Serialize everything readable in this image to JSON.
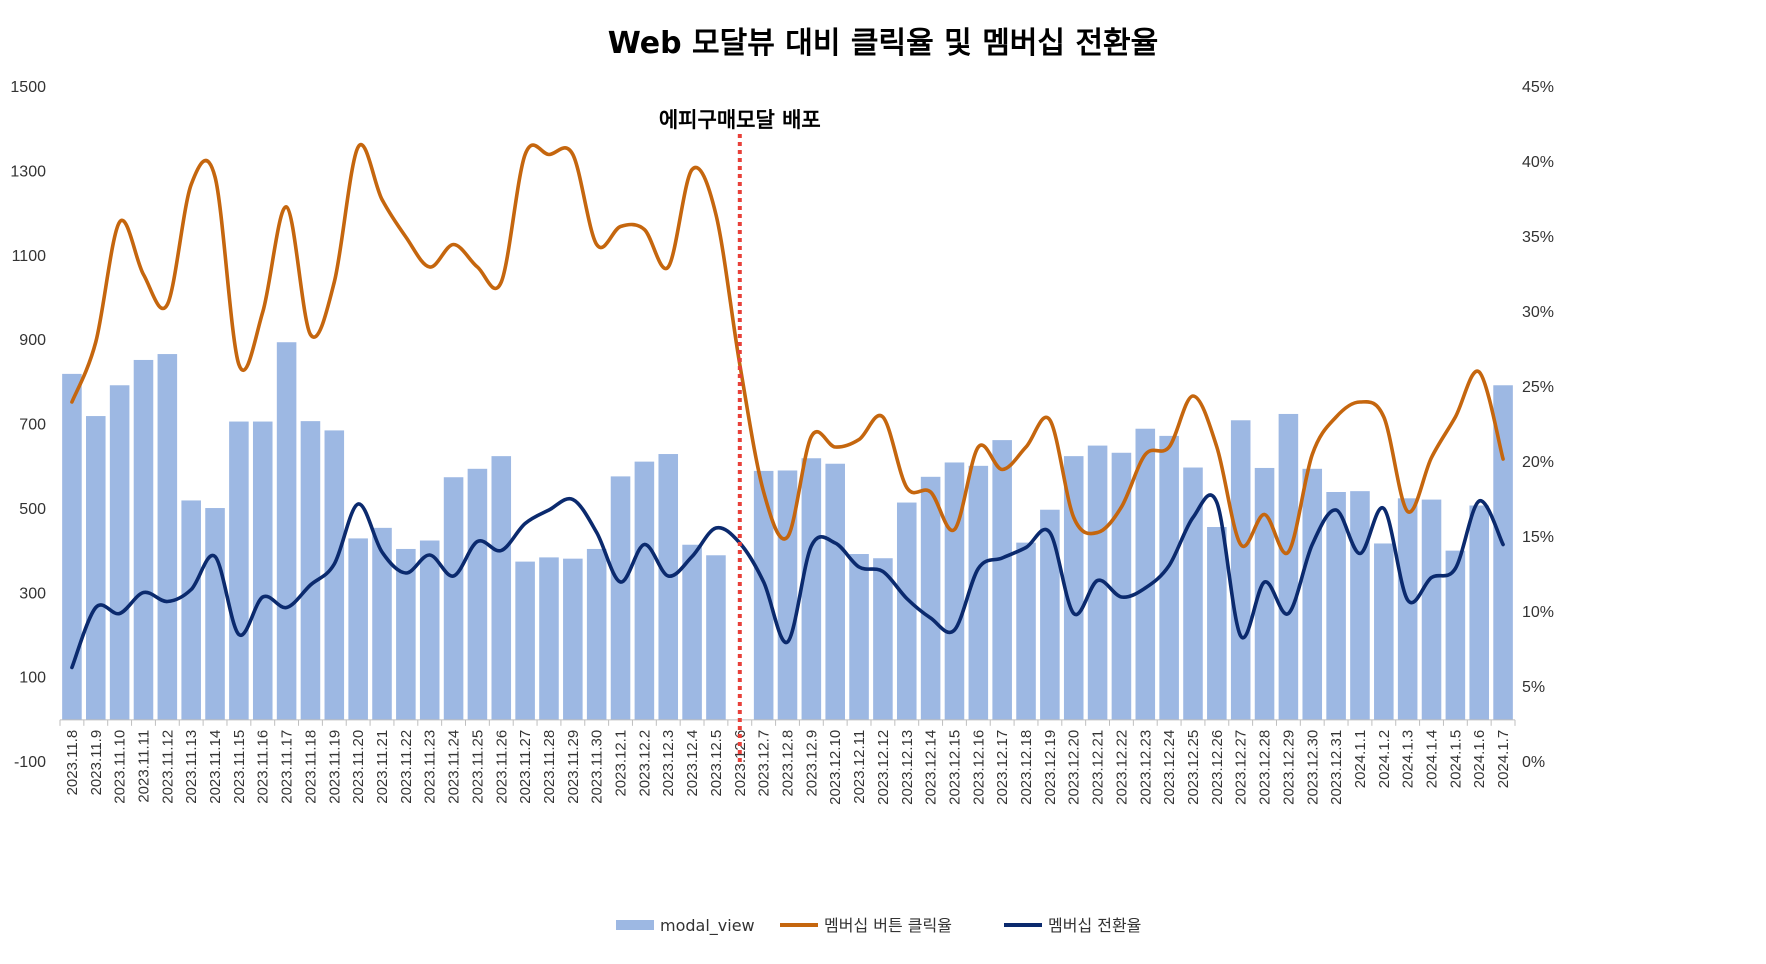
{
  "chart_data": {
    "type": "bar",
    "title": "Web 모달뷰 대비 클릭율 및 멤버십 전환율",
    "annotation": {
      "label": "에피구매모달 배포",
      "at": "2023.12.6"
    },
    "categories": [
      "2023.11.8",
      "2023.11.9",
      "2023.11.10",
      "2023.11.11",
      "2023.11.12",
      "2023.11.13",
      "2023.11.14",
      "2023.11.15",
      "2023.11.16",
      "2023.11.17",
      "2023.11.18",
      "2023.11.19",
      "2023.11.20",
      "2023.11.21",
      "2023.11.22",
      "2023.11.23",
      "2023.11.24",
      "2023.11.25",
      "2023.11.26",
      "2023.11.27",
      "2023.11.28",
      "2023.11.29",
      "2023.11.30",
      "2023.12.1",
      "2023.12.2",
      "2023.12.3",
      "2023.12.4",
      "2023.12.5",
      "2023.12.6",
      "2023.12.7",
      "2023.12.8",
      "2023.12.9",
      "2023.12.10",
      "2023.12.11",
      "2023.12.12",
      "2023.12.13",
      "2023.12.14",
      "2023.12.15",
      "2023.12.16",
      "2023.12.17",
      "2023.12.18",
      "2023.12.19",
      "2023.12.20",
      "2023.12.21",
      "2023.12.22",
      "2023.12.23",
      "2023.12.24",
      "2023.12.25",
      "2023.12.26",
      "2023.12.27",
      "2023.12.28",
      "2023.12.29",
      "2023.12.30",
      "2023.12.31",
      "2024.1.1",
      "2024.1.2",
      "2024.1.3",
      "2024.1.4",
      "2024.1.5",
      "2024.1.6",
      "2024.1.7"
    ],
    "y_left": {
      "min": -100,
      "max": 1500,
      "ticks": [
        -100,
        100,
        300,
        500,
        700,
        900,
        1100,
        1300,
        1500
      ]
    },
    "y_right": {
      "min": 0,
      "max": 45,
      "ticks": [
        0,
        5,
        10,
        15,
        20,
        25,
        30,
        35,
        40,
        45
      ],
      "tick_labels": [
        "0%",
        "5%",
        "10%",
        "15%",
        "20%",
        "25%",
        "30%",
        "35%",
        "40%",
        "45%"
      ]
    },
    "series": [
      {
        "name": "modal_view",
        "kind": "bar",
        "axis": "left",
        "color": "#9DB8E3",
        "values": [
          820,
          720,
          793,
          853,
          867,
          520,
          502,
          707,
          707,
          895,
          708,
          686,
          430,
          455,
          405,
          425,
          575,
          595,
          625,
          375,
          385,
          382,
          405,
          577,
          612,
          630,
          415,
          390,
          0,
          590,
          591,
          620,
          607,
          393,
          383,
          515,
          576,
          610,
          602,
          663,
          420,
          498,
          625,
          650,
          633,
          690,
          673,
          598,
          457,
          710,
          597,
          725,
          595,
          540,
          542,
          418,
          525,
          522,
          401,
          508,
          793
        ]
      },
      {
        "name": "멤버십 버튼 클릭율",
        "kind": "line",
        "axis": "right",
        "color": "#C5660E",
        "values": [
          24,
          28,
          36,
          32.5,
          30.5,
          38.5,
          39,
          26.5,
          30,
          37,
          28.5,
          32,
          41,
          37.5,
          35,
          33,
          34.5,
          33,
          32,
          40.5,
          40.5,
          40.5,
          34.5,
          35.7,
          35.5,
          33,
          39.5,
          36.5,
          26.5,
          18,
          15,
          21.7,
          21,
          21.5,
          23,
          18.3,
          18,
          15.5,
          21,
          19.5,
          21,
          22.8,
          16.3,
          15.3,
          17,
          20.5,
          21,
          24.4,
          21,
          14.5,
          16.5,
          14,
          20.5,
          23,
          24,
          23,
          16.7,
          20.3,
          23,
          26,
          20.2
        ]
      },
      {
        "name": "멤버십 전환율",
        "kind": "line",
        "axis": "right",
        "color": "#0B2A6E",
        "values": [
          6.3,
          10.3,
          9.9,
          11.3,
          10.7,
          11.5,
          13.7,
          8.5,
          11,
          10.3,
          11.8,
          13.2,
          17.2,
          14,
          12.6,
          13.8,
          12.4,
          14.7,
          14.1,
          15.9,
          16.8,
          17.5,
          15.3,
          12,
          14.5,
          12.4,
          13.7,
          15.6,
          14.6,
          12,
          8,
          14.4,
          14.6,
          13,
          12.7,
          10.9,
          9.6,
          8.8,
          12.9,
          13.6,
          14.3,
          15.3,
          9.9,
          12.1,
          11,
          11.6,
          13.1,
          16.3,
          17.3,
          8.4,
          12,
          9.9,
          14.5,
          16.8,
          13.9,
          16.9,
          10.8,
          12.3,
          12.9,
          17.4,
          14.5
        ]
      }
    ],
    "legend": {
      "position": "bottom",
      "entries": [
        "modal_view",
        "멤버십 버튼 클릭율",
        "멤버십 전환율"
      ]
    },
    "grid": false
  }
}
